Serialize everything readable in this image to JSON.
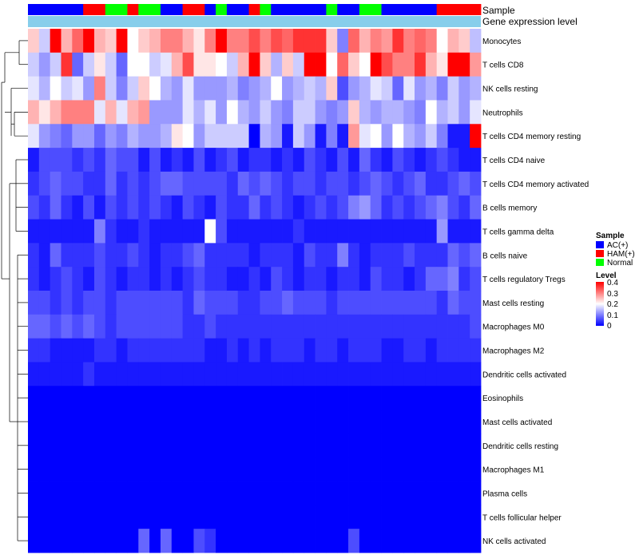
{
  "chart_data": {
    "type": "heatmap",
    "title": "",
    "annotation_labels": [
      "Sample",
      "Gene expression level"
    ],
    "samples": [
      "AC",
      "AC",
      "AC",
      "AC",
      "AC",
      "HAM",
      "HAM",
      "Normal",
      "Normal",
      "HAM",
      "Normal",
      "Normal",
      "AC",
      "AC",
      "HAM",
      "HAM",
      "AC",
      "Normal",
      "AC",
      "AC",
      "HAM",
      "Normal",
      "AC",
      "AC",
      "AC",
      "AC",
      "AC",
      "Normal",
      "AC",
      "AC",
      "Normal",
      "Normal",
      "AC",
      "AC",
      "AC",
      "AC",
      "AC",
      "HAM",
      "HAM",
      "HAM",
      "HAM"
    ],
    "rows": [
      "Monocytes",
      "T cells CD8",
      "NK cells resting",
      "Neutrophils",
      "T cells CD4 memory resting",
      "T cells CD4 naive",
      "T cells CD4 memory activated",
      "B cells memory",
      "T cells gamma delta",
      "B cells naive",
      "T cells regulatory  Tregs",
      "Mast cells resting",
      "Macrophages M0",
      "Macrophages M2",
      "Dendritic cells activated",
      "Eosinophils",
      "Mast cells activated",
      "Dendritic cells resting",
      "Macrophages M1",
      "Plasma cells",
      "T cells follicular helper",
      "NK cells activated"
    ],
    "values": [
      [
        0.24,
        0.16,
        0.4,
        0.26,
        0.32,
        0.4,
        0.26,
        0.24,
        0.4,
        0.2,
        0.24,
        0.26,
        0.3,
        0.3,
        0.26,
        0.22,
        0.3,
        0.4,
        0.3,
        0.3,
        0.34,
        0.3,
        0.34,
        0.32,
        0.36,
        0.36,
        0.36,
        0.24,
        0.1,
        0.32,
        0.26,
        0.3,
        0.28,
        0.36,
        0.3,
        0.32,
        0.3,
        0.2,
        0.26,
        0.24,
        0.15
      ],
      [
        0.16,
        0.12,
        0.16,
        0.36,
        0.08,
        0.16,
        0.22,
        0.16,
        0.08,
        0.2,
        0.2,
        0.16,
        0.18,
        0.26,
        0.34,
        0.22,
        0.22,
        0.2,
        0.16,
        0.26,
        0.4,
        0.24,
        0.14,
        0.24,
        0.16,
        0.4,
        0.4,
        0.2,
        0.32,
        0.24,
        0.2,
        0.4,
        0.34,
        0.3,
        0.3,
        0.36,
        0.26,
        0.22,
        0.4,
        0.4,
        0.28
      ],
      [
        0.18,
        0.14,
        0.2,
        0.16,
        0.18,
        0.12,
        0.3,
        0.16,
        0.1,
        0.16,
        0.24,
        0.2,
        0.14,
        0.12,
        0.18,
        0.12,
        0.12,
        0.12,
        0.14,
        0.1,
        0.12,
        0.14,
        0.2,
        0.12,
        0.14,
        0.16,
        0.14,
        0.24,
        0.06,
        0.12,
        0.14,
        0.18,
        0.16,
        0.08,
        0.18,
        0.12,
        0.14,
        0.1,
        0.16,
        0.12,
        0.14
      ],
      [
        0.26,
        0.22,
        0.26,
        0.3,
        0.3,
        0.3,
        0.18,
        0.26,
        0.18,
        0.26,
        0.28,
        0.12,
        0.12,
        0.12,
        0.18,
        0.14,
        0.18,
        0.12,
        0.2,
        0.14,
        0.12,
        0.16,
        0.12,
        0.1,
        0.16,
        0.16,
        0.12,
        0.1,
        0.12,
        0.24,
        0.14,
        0.12,
        0.14,
        0.14,
        0.12,
        0.1,
        0.2,
        0.14,
        0.16,
        0.12,
        0.18
      ],
      [
        0.18,
        0.12,
        0.1,
        0.08,
        0.12,
        0.12,
        0.08,
        0.12,
        0.1,
        0.14,
        0.12,
        0.12,
        0.14,
        0.22,
        0.2,
        0.12,
        0.16,
        0.16,
        0.16,
        0.16,
        0.0,
        0.14,
        0.12,
        0.02,
        0.16,
        0.12,
        0.02,
        0.1,
        0.02,
        0.28,
        0.18,
        0.2,
        0.12,
        0.2,
        0.14,
        0.12,
        0.16,
        0.1,
        0.02,
        0.02,
        0.4
      ],
      [
        0.02,
        0.06,
        0.06,
        0.06,
        0.04,
        0.06,
        0.04,
        0.08,
        0.06,
        0.06,
        0.02,
        0.06,
        0.02,
        0.04,
        0.02,
        0.06,
        0.02,
        0.04,
        0.06,
        0.02,
        0.04,
        0.04,
        0.02,
        0.04,
        0.02,
        0.06,
        0.04,
        0.02,
        0.06,
        0.02,
        0.08,
        0.04,
        0.02,
        0.06,
        0.04,
        0.02,
        0.04,
        0.06,
        0.04,
        0.02,
        0.02
      ],
      [
        0.04,
        0.06,
        0.08,
        0.06,
        0.06,
        0.04,
        0.04,
        0.08,
        0.04,
        0.06,
        0.04,
        0.06,
        0.08,
        0.08,
        0.06,
        0.06,
        0.06,
        0.06,
        0.04,
        0.08,
        0.06,
        0.08,
        0.06,
        0.04,
        0.06,
        0.06,
        0.04,
        0.06,
        0.06,
        0.04,
        0.06,
        0.08,
        0.06,
        0.04,
        0.06,
        0.08,
        0.04,
        0.04,
        0.06,
        0.08,
        0.06
      ],
      [
        0.06,
        0.04,
        0.08,
        0.04,
        0.02,
        0.06,
        0.02,
        0.06,
        0.04,
        0.06,
        0.04,
        0.06,
        0.04,
        0.02,
        0.06,
        0.04,
        0.02,
        0.06,
        0.04,
        0.04,
        0.08,
        0.04,
        0.06,
        0.04,
        0.02,
        0.04,
        0.06,
        0.04,
        0.06,
        0.1,
        0.12,
        0.08,
        0.04,
        0.06,
        0.04,
        0.06,
        0.08,
        0.1,
        0.06,
        0.04,
        0.08
      ],
      [
        0.02,
        0.02,
        0.02,
        0.02,
        0.02,
        0.02,
        0.1,
        0.04,
        0.02,
        0.02,
        0.04,
        0.02,
        0.02,
        0.02,
        0.02,
        0.02,
        0.2,
        0.06,
        0.02,
        0.02,
        0.02,
        0.02,
        0.02,
        0.02,
        0.04,
        0.02,
        0.02,
        0.02,
        0.02,
        0.02,
        0.02,
        0.02,
        0.02,
        0.02,
        0.02,
        0.02,
        0.02,
        0.12,
        0.02,
        0.02,
        0.02
      ],
      [
        0.04,
        0.02,
        0.08,
        0.04,
        0.04,
        0.04,
        0.06,
        0.04,
        0.04,
        0.06,
        0.04,
        0.02,
        0.04,
        0.04,
        0.06,
        0.08,
        0.04,
        0.04,
        0.04,
        0.04,
        0.02,
        0.04,
        0.04,
        0.04,
        0.02,
        0.06,
        0.04,
        0.04,
        0.1,
        0.04,
        0.02,
        0.04,
        0.04,
        0.04,
        0.06,
        0.04,
        0.04,
        0.04,
        0.08,
        0.06,
        0.08
      ],
      [
        0.04,
        0.02,
        0.04,
        0.06,
        0.04,
        0.02,
        0.06,
        0.04,
        0.02,
        0.04,
        0.04,
        0.02,
        0.04,
        0.02,
        0.04,
        0.06,
        0.04,
        0.04,
        0.02,
        0.02,
        0.04,
        0.02,
        0.06,
        0.04,
        0.02,
        0.04,
        0.04,
        0.02,
        0.04,
        0.04,
        0.02,
        0.06,
        0.04,
        0.04,
        0.02,
        0.04,
        0.08,
        0.08,
        0.1,
        0.04,
        0.06
      ],
      [
        0.06,
        0.06,
        0.04,
        0.06,
        0.04,
        0.06,
        0.06,
        0.04,
        0.06,
        0.06,
        0.06,
        0.06,
        0.06,
        0.06,
        0.04,
        0.08,
        0.06,
        0.06,
        0.06,
        0.04,
        0.04,
        0.06,
        0.06,
        0.08,
        0.06,
        0.06,
        0.06,
        0.04,
        0.06,
        0.06,
        0.06,
        0.06,
        0.06,
        0.06,
        0.06,
        0.06,
        0.06,
        0.04,
        0.08,
        0.06,
        0.06
      ],
      [
        0.08,
        0.08,
        0.06,
        0.08,
        0.06,
        0.08,
        0.06,
        0.04,
        0.06,
        0.06,
        0.06,
        0.06,
        0.06,
        0.06,
        0.04,
        0.04,
        0.06,
        0.04,
        0.04,
        0.04,
        0.04,
        0.04,
        0.04,
        0.04,
        0.04,
        0.04,
        0.04,
        0.04,
        0.04,
        0.04,
        0.04,
        0.04,
        0.04,
        0.04,
        0.04,
        0.04,
        0.04,
        0.04,
        0.04,
        0.04,
        0.06
      ],
      [
        0.04,
        0.04,
        0.02,
        0.02,
        0.02,
        0.02,
        0.04,
        0.04,
        0.02,
        0.04,
        0.04,
        0.04,
        0.04,
        0.04,
        0.04,
        0.04,
        0.02,
        0.02,
        0.04,
        0.02,
        0.04,
        0.02,
        0.04,
        0.04,
        0.04,
        0.02,
        0.04,
        0.04,
        0.02,
        0.04,
        0.04,
        0.04,
        0.02,
        0.02,
        0.04,
        0.04,
        0.02,
        0.04,
        0.04,
        0.04,
        0.04
      ],
      [
        0.02,
        0.02,
        0.02,
        0.02,
        0.02,
        0.04,
        0.02,
        0.02,
        0.02,
        0.02,
        0.02,
        0.02,
        0.02,
        0.02,
        0.02,
        0.02,
        0.02,
        0.02,
        0.02,
        0.02,
        0.02,
        0.02,
        0.02,
        0.02,
        0.02,
        0.02,
        0.02,
        0.02,
        0.02,
        0.02,
        0.02,
        0.02,
        0.02,
        0.02,
        0.02,
        0.02,
        0.02,
        0.02,
        0.02,
        0.02,
        0.02
      ],
      [
        0,
        0,
        0,
        0,
        0,
        0,
        0,
        0,
        0,
        0,
        0,
        0,
        0,
        0,
        0,
        0,
        0,
        0,
        0,
        0,
        0,
        0,
        0,
        0,
        0,
        0,
        0,
        0,
        0,
        0,
        0,
        0,
        0,
        0,
        0,
        0,
        0,
        0,
        0,
        0,
        0
      ],
      [
        0,
        0,
        0,
        0,
        0,
        0,
        0,
        0,
        0,
        0,
        0,
        0,
        0,
        0,
        0,
        0,
        0,
        0,
        0,
        0,
        0,
        0,
        0,
        0,
        0,
        0,
        0,
        0,
        0,
        0,
        0,
        0,
        0,
        0,
        0,
        0,
        0,
        0,
        0,
        0,
        0
      ],
      [
        0,
        0,
        0,
        0,
        0,
        0,
        0,
        0,
        0,
        0,
        0,
        0,
        0,
        0,
        0,
        0,
        0,
        0,
        0,
        0,
        0,
        0,
        0,
        0,
        0,
        0,
        0,
        0,
        0,
        0,
        0,
        0,
        0,
        0,
        0,
        0,
        0,
        0,
        0,
        0,
        0
      ],
      [
        0,
        0,
        0,
        0,
        0,
        0,
        0,
        0,
        0,
        0,
        0,
        0,
        0,
        0,
        0,
        0,
        0,
        0,
        0,
        0,
        0,
        0,
        0,
        0,
        0,
        0,
        0,
        0,
        0,
        0,
        0,
        0,
        0,
        0,
        0,
        0,
        0,
        0,
        0,
        0,
        0
      ],
      [
        0,
        0,
        0,
        0,
        0,
        0,
        0,
        0,
        0,
        0,
        0,
        0,
        0,
        0,
        0,
        0,
        0,
        0,
        0,
        0,
        0,
        0,
        0,
        0,
        0,
        0,
        0,
        0,
        0,
        0,
        0,
        0,
        0,
        0,
        0,
        0,
        0,
        0,
        0,
        0,
        0
      ],
      [
        0,
        0,
        0,
        0,
        0,
        0,
        0,
        0,
        0,
        0,
        0,
        0,
        0,
        0,
        0,
        0,
        0,
        0,
        0,
        0,
        0,
        0,
        0,
        0,
        0,
        0,
        0,
        0,
        0,
        0,
        0,
        0,
        0,
        0,
        0,
        0,
        0,
        0,
        0,
        0,
        0
      ],
      [
        0,
        0,
        0,
        0,
        0,
        0,
        0,
        0,
        0,
        0,
        0.08,
        0,
        0.08,
        0,
        0,
        0.06,
        0.04,
        0,
        0,
        0,
        0,
        0,
        0,
        0,
        0,
        0,
        0,
        0,
        0,
        0.06,
        0,
        0,
        0,
        0,
        0,
        0,
        0,
        0,
        0,
        0,
        0
      ]
    ],
    "value_range": [
      0,
      0.4
    ],
    "color_scale": [
      "#0000ff",
      "#ffffff",
      "#ff0000"
    ],
    "expression_bar_color": "#87ceeb",
    "legend": {
      "sample_title": "Sample",
      "sample_entries": [
        {
          "key": "AC",
          "label": "AC(+)",
          "color": "#0000ff"
        },
        {
          "key": "HAM",
          "label": "HAM(+)",
          "color": "#ff0000"
        },
        {
          "key": "Normal",
          "label": "Normal",
          "color": "#00ff00"
        }
      ],
      "level_title": "Level",
      "level_ticks": [
        "0.4",
        "0.3",
        "0.2",
        "0.1",
        "0"
      ]
    }
  }
}
